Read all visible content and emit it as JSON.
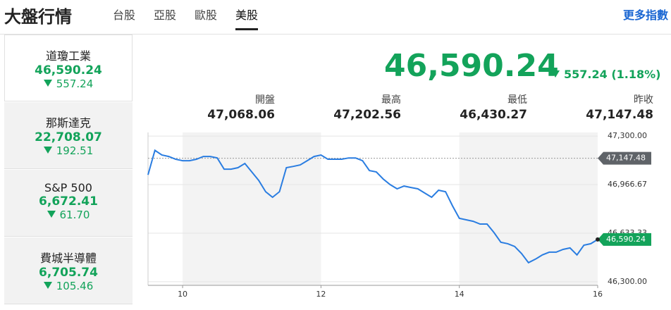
{
  "header": {
    "title": "大盤行情",
    "tabs": {
      "items": [
        "台股",
        "亞股",
        "歐股",
        "美股"
      ],
      "active": 3
    },
    "more_link": "更多指數"
  },
  "sidebar": {
    "active": 0,
    "items": [
      {
        "name": "道瓊工業",
        "price": "46,590.24",
        "change": "557.24"
      },
      {
        "name": "那斯達克",
        "price": "22,708.07",
        "change": "192.51"
      },
      {
        "name": "S&P 500",
        "price": "6,672.41",
        "change": "61.70"
      },
      {
        "name": "費城半導體",
        "price": "6,705.74",
        "change": "105.46"
      }
    ]
  },
  "quote": {
    "price": "46,590.24",
    "change": "557.24 (1.18%)",
    "stats": [
      {
        "label": "開盤",
        "value": "47,068.06"
      },
      {
        "label": "最高",
        "value": "47,202.56"
      },
      {
        "label": "最低",
        "value": "46,430.27"
      },
      {
        "label": "昨收",
        "value": "47,147.48"
      }
    ]
  },
  "chart": {
    "type": "line",
    "color": "#2a7de1",
    "x": [
      9.5,
      9.6,
      9.7,
      9.8,
      9.9,
      10.0,
      10.1,
      10.2,
      10.3,
      10.4,
      10.5,
      10.6,
      10.7,
      10.8,
      10.9,
      11.0,
      11.1,
      11.2,
      11.3,
      11.4,
      11.5,
      11.6,
      11.7,
      11.8,
      11.9,
      12.0,
      12.1,
      12.2,
      12.3,
      12.4,
      12.5,
      12.6,
      12.7,
      12.8,
      12.9,
      13.0,
      13.1,
      13.2,
      13.3,
      13.4,
      13.5,
      13.6,
      13.7,
      13.8,
      13.9,
      14.0,
      14.1,
      14.2,
      14.3,
      14.4,
      14.5,
      14.6,
      14.7,
      14.8,
      14.9,
      15.0,
      15.1,
      15.2,
      15.3,
      15.4,
      15.5,
      15.6,
      15.7,
      15.8,
      15.9,
      16.0
    ],
    "values": [
      47034,
      47202,
      47170,
      47160,
      47141,
      47131,
      47131,
      47141,
      47160,
      47160,
      47150,
      47073,
      47073,
      47083,
      47112,
      47054,
      46996,
      46918,
      46880,
      46918,
      47083,
      47092,
      47102,
      47131,
      47160,
      47170,
      47141,
      47141,
      47141,
      47150,
      47150,
      47131,
      47063,
      47054,
      47005,
      46967,
      46938,
      46957,
      46947,
      46938,
      46909,
      46880,
      46928,
      46918,
      46822,
      46735,
      46725,
      46715,
      46696,
      46696,
      46638,
      46571,
      46561,
      46542,
      46493,
      46431,
      46455,
      46484,
      46503,
      46503,
      46522,
      46532,
      46484,
      46551,
      46561,
      46590.24
    ],
    "xlim": [
      9.5,
      16
    ],
    "xticks": [
      10,
      12,
      14,
      16
    ],
    "ylim": [
      46275,
      47325
    ],
    "yticks": [
      {
        "value": 46300,
        "label": "46,300.00"
      },
      {
        "value": 46633.33,
        "label": "46,633.33"
      },
      {
        "value": 46966.67,
        "label": "46,966.67"
      },
      {
        "value": 47300,
        "label": "47,300.00"
      }
    ],
    "ref_line": {
      "value": 47147.48,
      "label": "47,147.48"
    },
    "last": {
      "value": 46590.24,
      "label": "46,590.24"
    }
  }
}
